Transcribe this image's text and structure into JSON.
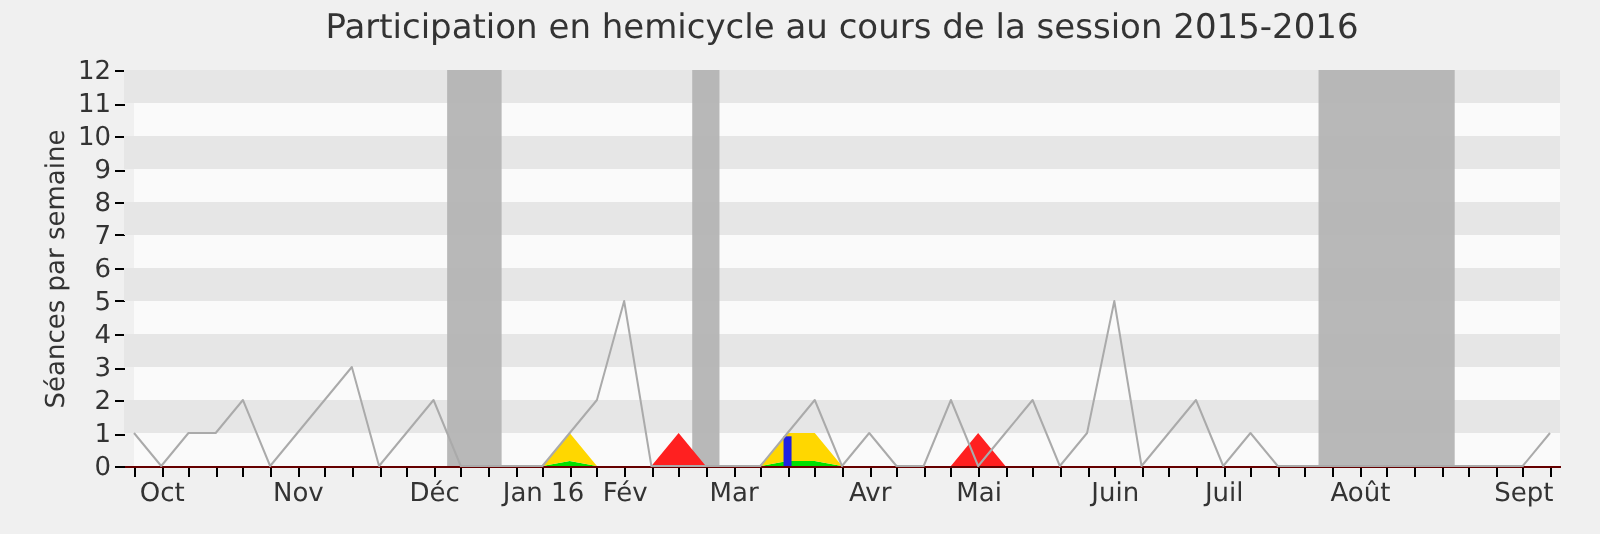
{
  "chart_data": {
    "type": "line",
    "title": "Participation en hemicycle au cours de la session 2015-2016",
    "ylabel": "Séances par semaine",
    "categories": [
      null,
      "Oct",
      null,
      null,
      null,
      null,
      "Nov",
      null,
      null,
      null,
      null,
      "Déc",
      null,
      null,
      null,
      "Jan 16",
      null,
      null,
      "Fév",
      null,
      null,
      null,
      "Mar",
      null,
      null,
      null,
      null,
      "Avr",
      null,
      null,
      null,
      "Mai",
      null,
      null,
      null,
      null,
      "Juin",
      null,
      null,
      null,
      "Juil",
      null,
      null,
      null,
      null,
      "Août",
      null,
      null,
      null,
      null,
      null,
      "Sept",
      null
    ],
    "stacked": true,
    "series": [
      {
        "type": "area",
        "color": "#00e000",
        "values": [
          0,
          0,
          0,
          0,
          0,
          0,
          0,
          0,
          0,
          0,
          0,
          0,
          0,
          0,
          0,
          0,
          0.15,
          0,
          0,
          0,
          0,
          0,
          0,
          0,
          0.15,
          0.15,
          0,
          0,
          0,
          0,
          0,
          0,
          0,
          0,
          0,
          0,
          0,
          0,
          0,
          0,
          0,
          0,
          0,
          0,
          0,
          0,
          0,
          0,
          0,
          0,
          0,
          0,
          0
        ]
      },
      {
        "type": "area",
        "color": "#ffd700",
        "values": [
          0,
          0,
          0,
          0,
          0,
          0,
          0,
          0,
          0,
          0,
          0,
          0,
          0,
          0,
          0,
          0,
          0.85,
          0,
          0,
          0,
          0,
          0,
          0,
          0,
          0.85,
          0.85,
          0,
          0,
          0,
          0,
          0,
          0,
          0,
          0,
          0,
          0,
          0,
          0,
          0,
          0,
          0,
          0,
          0,
          0,
          0,
          0,
          0,
          0,
          0,
          0,
          0,
          0,
          0
        ]
      },
      {
        "type": "area",
        "color": "#ff2020",
        "values": [
          null,
          null,
          null,
          null,
          null,
          null,
          null,
          null,
          null,
          null,
          null,
          null,
          null,
          null,
          null,
          null,
          null,
          null,
          null,
          0,
          1,
          0,
          null,
          null,
          null,
          null,
          null,
          null,
          null,
          null,
          0,
          1,
          0,
          null,
          null,
          null,
          null,
          null,
          null,
          null,
          null,
          null,
          null,
          null,
          null,
          null,
          null,
          null,
          null,
          null,
          null,
          null,
          null
        ]
      },
      {
        "type": "bar",
        "color": "#2020e0",
        "values": [
          null,
          null,
          null,
          null,
          null,
          null,
          null,
          null,
          null,
          null,
          null,
          null,
          null,
          null,
          null,
          null,
          null,
          null,
          null,
          null,
          null,
          null,
          null,
          null,
          0.9,
          null,
          null,
          null,
          null,
          null,
          null,
          null,
          null,
          null,
          null,
          null,
          null,
          null,
          null,
          null,
          null,
          null,
          null,
          null,
          null,
          null,
          null,
          null,
          null,
          null,
          null,
          null,
          null
        ]
      },
      {
        "color": "#aaaaaa",
        "values": [
          1,
          0,
          1,
          1,
          2,
          0,
          1,
          2,
          3,
          0,
          1,
          2,
          0,
          0,
          0,
          0,
          1,
          2,
          5,
          0,
          0,
          0,
          0,
          0,
          1,
          2,
          0,
          1,
          0,
          0,
          2,
          0,
          1,
          2,
          0,
          1,
          5,
          0,
          1,
          2,
          0,
          1,
          0,
          0,
          0,
          0,
          0,
          0,
          0,
          0,
          0,
          0,
          1
        ]
      }
    ],
    "bands": [
      {
        "axis": "y",
        "from": 1,
        "to": 2,
        "color": "#e6e6e6"
      },
      {
        "axis": "y",
        "from": 3,
        "to": 4,
        "color": "#e6e6e6"
      },
      {
        "axis": "y",
        "from": 5,
        "to": 6,
        "color": "#e6e6e6"
      },
      {
        "axis": "y",
        "from": 7,
        "to": 8,
        "color": "#e6e6e6"
      },
      {
        "axis": "y",
        "from": 9,
        "to": 10,
        "color": "#e6e6e6"
      },
      {
        "axis": "y",
        "from": 11,
        "to": 12,
        "color": "#e6e6e6"
      }
    ],
    "ylim": [
      0,
      12
    ],
    "yticks": [
      0,
      1,
      2,
      3,
      4,
      5,
      6,
      7,
      8,
      9,
      10,
      11,
      12
    ]
  }
}
